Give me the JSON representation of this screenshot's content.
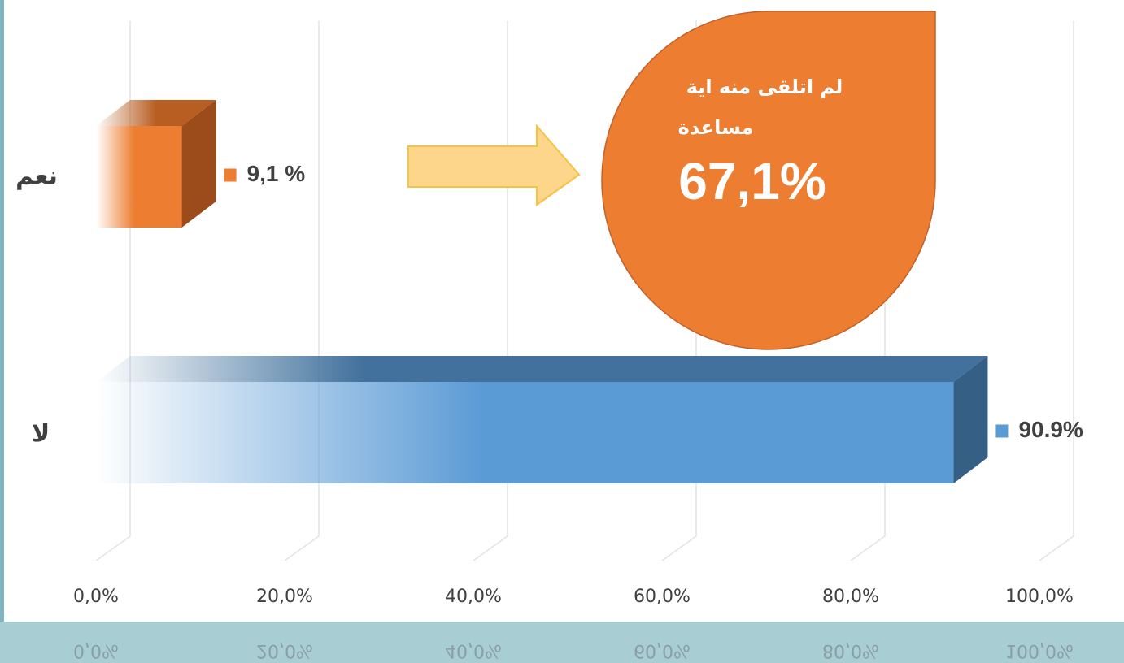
{
  "chart_data": {
    "type": "bar",
    "orientation": "horizontal",
    "categories": [
      "نعم",
      "لا"
    ],
    "series": [
      {
        "colors": [
          "#ed7d31",
          "#5b9bd5"
        ],
        "values": [
          9.1,
          90.9
        ],
        "value_labels": [
          "9,1 %",
          "90.9%"
        ]
      }
    ],
    "xlim": [
      0,
      100
    ],
    "xticks": [
      {
        "value": 0,
        "label": "0,0%"
      },
      {
        "value": 20,
        "label": "20,0%"
      },
      {
        "value": 40,
        "label": "40,0%"
      },
      {
        "value": 60,
        "label": "60,0%"
      },
      {
        "value": 80,
        "label": "80,0%"
      },
      {
        "value": 100,
        "label": "100,0%"
      }
    ],
    "grid": true,
    "annotation": {
      "lines": [
        "لم اتلقى منه اية",
        "مساعدة"
      ],
      "value_label": "67,1%"
    }
  }
}
